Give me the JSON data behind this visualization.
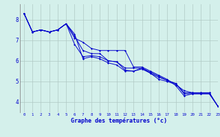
{
  "title": "Graphe des températures (°c)",
  "bg_color": "#d4f0eb",
  "grid_color": "#b0c8c4",
  "line_color": "#0000cc",
  "xlim": [
    -0.5,
    23
  ],
  "ylim": [
    3.5,
    8.75
  ],
  "xticks": [
    0,
    1,
    2,
    3,
    4,
    5,
    6,
    7,
    8,
    9,
    10,
    11,
    12,
    13,
    14,
    15,
    16,
    17,
    18,
    19,
    20,
    21,
    22,
    23
  ],
  "yticks": [
    4,
    5,
    6,
    7,
    8
  ],
  "series": [
    [
      8.3,
      7.4,
      7.5,
      7.4,
      7.5,
      7.8,
      7.1,
      6.9,
      6.6,
      6.5,
      6.5,
      6.5,
      6.5,
      5.7,
      5.7,
      5.5,
      5.3,
      5.1,
      4.8,
      4.3,
      4.4,
      4.4,
      4.4,
      3.8
    ],
    [
      8.3,
      7.4,
      7.5,
      7.4,
      7.5,
      7.8,
      7.2,
      6.5,
      6.35,
      6.35,
      6.0,
      5.95,
      5.65,
      5.65,
      5.65,
      5.4,
      5.1,
      5.0,
      4.85,
      4.55,
      4.45,
      4.45,
      4.45,
      3.8
    ],
    [
      8.3,
      7.4,
      7.5,
      7.4,
      7.5,
      7.8,
      7.3,
      6.1,
      6.2,
      6.1,
      5.9,
      5.8,
      5.5,
      5.5,
      5.6,
      5.4,
      5.2,
      5.05,
      4.9,
      4.45,
      4.45,
      4.45,
      4.45,
      3.8
    ],
    [
      8.3,
      7.4,
      7.5,
      7.4,
      7.5,
      7.8,
      6.8,
      6.2,
      6.25,
      6.2,
      6.0,
      5.95,
      5.55,
      5.5,
      5.65,
      5.45,
      5.25,
      5.05,
      4.9,
      4.4,
      4.4,
      4.4,
      4.4,
      3.8
    ]
  ]
}
